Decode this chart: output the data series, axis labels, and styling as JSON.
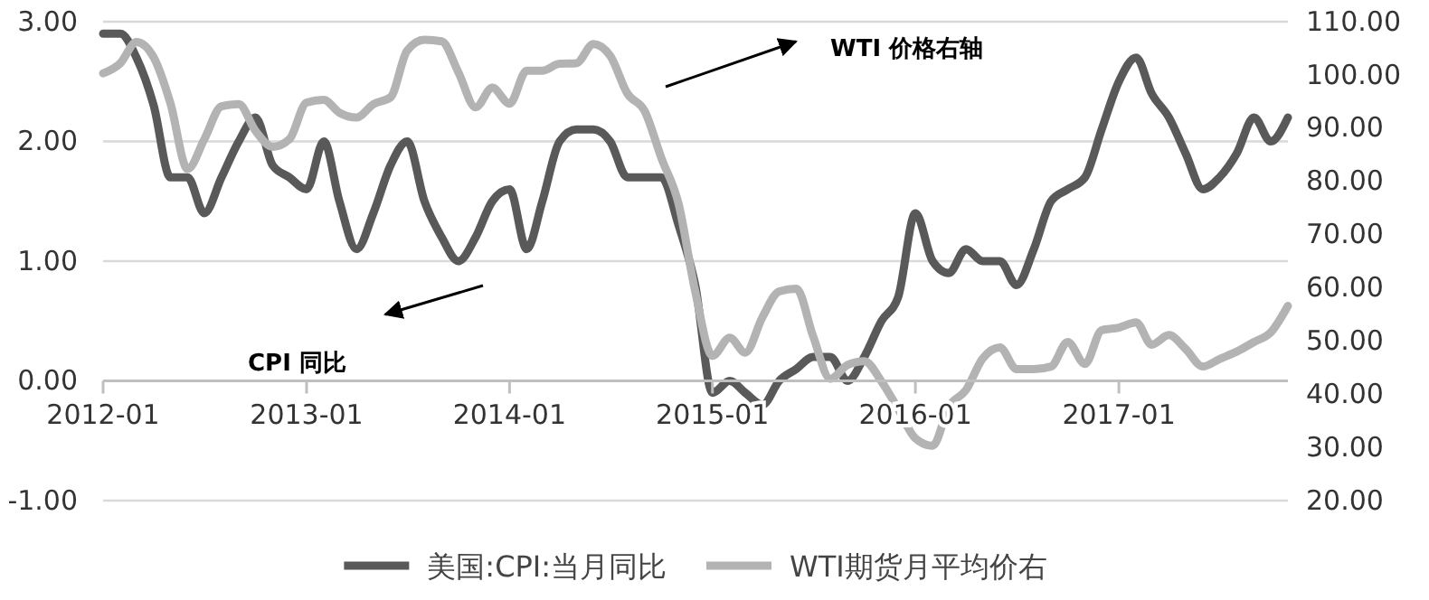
{
  "chart_data": {
    "type": "line",
    "annotations": [
      "WTI 价格右轴",
      "CPI 同比"
    ],
    "x": [
      "2012-01",
      "2012-02",
      "2012-03",
      "2012-04",
      "2012-05",
      "2012-06",
      "2012-07",
      "2012-08",
      "2012-09",
      "2012-10",
      "2012-11",
      "2012-12",
      "2013-01",
      "2013-02",
      "2013-03",
      "2013-04",
      "2013-05",
      "2013-06",
      "2013-07",
      "2013-08",
      "2013-09",
      "2013-10",
      "2013-11",
      "2013-12",
      "2014-01",
      "2014-02",
      "2014-03",
      "2014-04",
      "2014-05",
      "2014-06",
      "2014-07",
      "2014-08",
      "2014-09",
      "2014-10",
      "2014-11",
      "2014-12",
      "2015-01",
      "2015-02",
      "2015-03",
      "2015-04",
      "2015-05",
      "2015-06",
      "2015-07",
      "2015-08",
      "2015-09",
      "2015-10",
      "2015-11",
      "2015-12",
      "2016-01",
      "2016-02",
      "2016-03",
      "2016-04",
      "2016-05",
      "2016-06",
      "2016-07",
      "2016-08",
      "2016-09",
      "2016-10",
      "2016-11",
      "2016-12",
      "2017-01",
      "2017-02",
      "2017-03",
      "2017-04",
      "2017-05",
      "2017-06",
      "2017-07",
      "2017-08",
      "2017-09",
      "2017-10",
      "2017-11"
    ],
    "series": [
      {
        "name": "美国:CPI:当月同比",
        "color": "#595959",
        "values": [
          2.9,
          2.9,
          2.7,
          2.3,
          1.7,
          1.7,
          1.4,
          1.7,
          2.0,
          2.2,
          1.8,
          1.7,
          1.6,
          2.0,
          1.5,
          1.1,
          1.4,
          1.8,
          2.0,
          1.5,
          1.2,
          1.0,
          1.2,
          1.5,
          1.6,
          1.1,
          1.5,
          2.0,
          2.1,
          2.1,
          2.0,
          1.7,
          1.7,
          1.7,
          1.3,
          0.8,
          -0.1,
          0.0,
          -0.1,
          -0.2,
          0.0,
          0.1,
          0.2,
          0.2,
          0.0,
          0.2,
          0.5,
          0.7,
          1.4,
          1.0,
          0.9,
          1.1,
          1.0,
          1.0,
          0.8,
          1.1,
          1.5,
          1.6,
          1.7,
          2.1,
          2.5,
          2.7,
          2.4,
          2.2,
          1.9,
          1.6,
          1.7,
          1.9,
          2.2,
          2.0,
          2.2
        ]
      },
      {
        "name": "WTI期货月平均价右",
        "color": "#b3b3b3",
        "axis": "y2",
        "values": [
          100.3,
          102.2,
          106.2,
          103.3,
          94.7,
          82.3,
          87.9,
          94.1,
          94.5,
          89.5,
          86.5,
          87.9,
          94.8,
          95.3,
          92.9,
          92.0,
          94.5,
          95.8,
          104.6,
          106.6,
          106.3,
          100.5,
          93.9,
          97.6,
          94.6,
          100.8,
          100.8,
          102.1,
          102.2,
          105.8,
          103.6,
          96.5,
          93.2,
          84.4,
          75.8,
          59.3,
          47.2,
          50.6,
          47.8,
          54.5,
          59.3,
          59.8,
          50.9,
          42.9,
          45.5,
          46.2,
          42.4,
          37.2,
          31.7,
          30.3,
          37.6,
          40.8,
          46.7,
          48.8,
          44.7,
          44.7,
          45.2,
          49.8,
          45.7,
          52.0,
          52.5,
          53.5,
          49.3,
          51.1,
          48.5,
          45.2,
          46.6,
          48.0,
          49.8,
          51.6,
          56.6
        ]
      }
    ],
    "xlim": [
      "2012-01",
      "2017-11"
    ],
    "xticks": [
      "2012-01",
      "2013-01",
      "2014-01",
      "2015-01",
      "2016-01",
      "2017-01"
    ],
    "ylim": [
      -1,
      3
    ],
    "yticks": [
      {
        "value": -1,
        "label": "-1.00"
      },
      {
        "value": 0,
        "label": "0.00"
      },
      {
        "value": 1,
        "label": "1.00"
      },
      {
        "value": 2,
        "label": "2.00"
      },
      {
        "value": 3,
        "label": "3.00"
      }
    ],
    "y2lim": [
      20,
      110
    ],
    "y2ticks": [
      {
        "value": 20,
        "label": "20.00"
      },
      {
        "value": 30,
        "label": "30.00"
      },
      {
        "value": 40,
        "label": "40.00"
      },
      {
        "value": 50,
        "label": "50.00"
      },
      {
        "value": 60,
        "label": "60.00"
      },
      {
        "value": 70,
        "label": "70.00"
      },
      {
        "value": 80,
        "label": "80.00"
      },
      {
        "value": 90,
        "label": "90.00"
      },
      {
        "value": 100,
        "label": "100.00"
      },
      {
        "value": 110,
        "label": "110.00"
      }
    ],
    "grid": "y",
    "legend": "bottom",
    "marker": "none",
    "line_style": "solid"
  }
}
